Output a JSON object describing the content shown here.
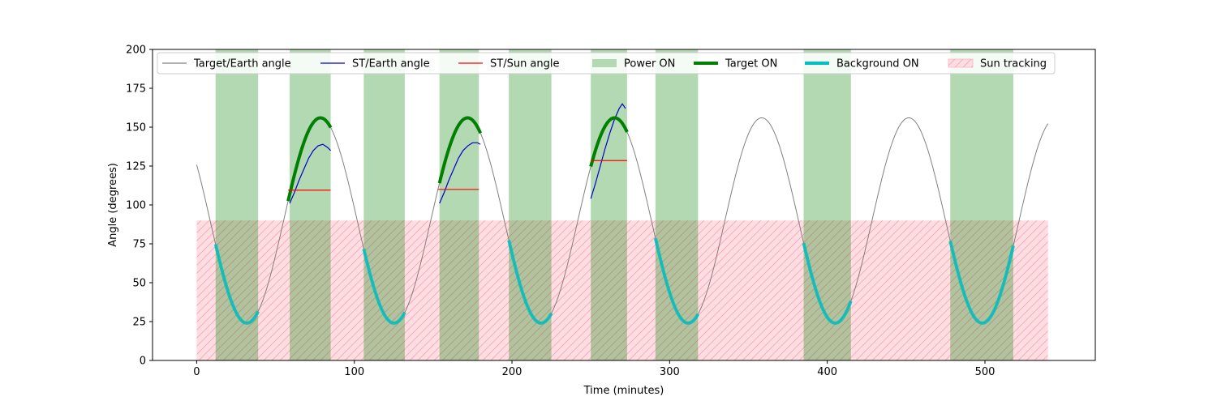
{
  "chart_data": {
    "type": "line",
    "title": "",
    "xlabel": "Time (minutes)",
    "ylabel": "Angle (degrees)",
    "xlim": [
      -28,
      570
    ],
    "ylim": [
      0,
      200
    ],
    "xticks": [
      0,
      100,
      200,
      300,
      400,
      500
    ],
    "yticks": [
      0,
      25,
      50,
      75,
      100,
      125,
      150,
      175,
      200
    ],
    "grid": false,
    "legend_position": "top, full width (single row)",
    "legend": [
      {
        "label": "Target/Earth angle",
        "kind": "line",
        "color": "#808080"
      },
      {
        "label": "ST/Earth angle",
        "kind": "line",
        "color": "#0000cc"
      },
      {
        "label": "ST/Sun angle",
        "kind": "line",
        "color": "#ff0000"
      },
      {
        "label": "Power ON",
        "kind": "patch",
        "color": "#b3d9b3"
      },
      {
        "label": "Target ON",
        "kind": "thickline",
        "color": "#008000"
      },
      {
        "label": "Background ON",
        "kind": "thickline",
        "color": "#00bfbf"
      },
      {
        "label": "Sun tracking",
        "kind": "hatch",
        "color": "#ffdde2"
      }
    ],
    "target_earth_model": {
      "mean": 90,
      "amplitude": 66,
      "period_minutes": 93.3,
      "peak_minute": 78.5,
      "x_range": [
        0,
        540
      ]
    },
    "power_on_intervals": [
      [
        12,
        39
      ],
      [
        59,
        85
      ],
      [
        106,
        132
      ],
      [
        154,
        179
      ],
      [
        198,
        225
      ],
      [
        250,
        273
      ],
      [
        291,
        318
      ],
      [
        385,
        415
      ],
      [
        478,
        518
      ]
    ],
    "sun_tracking": {
      "y_max": 90,
      "intervals": [
        [
          0,
          59
        ],
        [
          85,
          154
        ],
        [
          179,
          250
        ],
        [
          273,
          540
        ]
      ]
    },
    "target_on_intervals": [
      [
        58,
        85
      ],
      [
        154,
        180
      ],
      [
        250,
        273
      ]
    ],
    "background_on_intervals": [
      [
        12,
        39
      ],
      [
        106,
        132
      ],
      [
        198,
        225
      ],
      [
        291,
        318
      ],
      [
        385,
        415
      ],
      [
        478,
        518
      ]
    ],
    "st_earth_series": [
      {
        "x": [
          59,
          62,
          65,
          68,
          71,
          74,
          77,
          80,
          83,
          85
        ],
        "y": [
          101,
          108,
          116,
          123,
          130,
          135,
          138,
          139,
          137,
          135
        ]
      },
      {
        "x": [
          154,
          157,
          160,
          163,
          166,
          169,
          172,
          175,
          178,
          180
        ],
        "y": [
          101,
          108,
          116,
          123,
          130,
          135,
          138,
          140,
          140,
          139
        ]
      },
      {
        "x": [
          250,
          253,
          256,
          259,
          262,
          265,
          268,
          270,
          272
        ],
        "y": [
          104,
          114,
          125,
          136,
          146,
          155,
          162,
          165,
          162
        ]
      }
    ],
    "st_sun_series": [
      {
        "x": [
          58,
          85
        ],
        "y": [
          109.5,
          109.5
        ]
      },
      {
        "x": [
          153,
          179
        ],
        "y": [
          110,
          110
        ]
      },
      {
        "x": [
          250,
          273
        ],
        "y": [
          128.5,
          128.5
        ]
      }
    ]
  }
}
